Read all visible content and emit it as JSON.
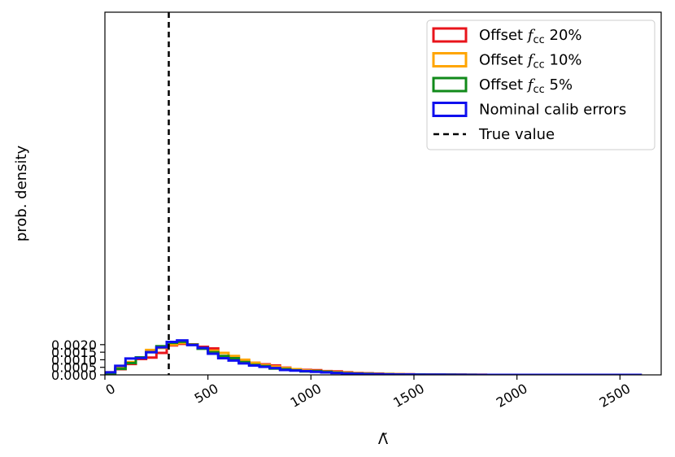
{
  "chart_data": {
    "type": "histogram",
    "title": "",
    "xlabel": "Λ̃",
    "ylabel": "prob. density",
    "xlim": [
      0,
      2700
    ],
    "ylim": [
      0,
      0.024
    ],
    "x_ticks": [
      0,
      500,
      1000,
      1500,
      2000,
      2500
    ],
    "x_tick_labels": [
      "0",
      "500",
      "1000",
      "1500",
      "2000",
      "2500"
    ],
    "y_ticks": [
      0,
      0.0005,
      0.001,
      0.0015,
      0.002
    ],
    "y_tick_labels": [
      "0.0000",
      "0.0005",
      "0.0010",
      "0.0015",
      "0.0020"
    ],
    "grid": false,
    "legend_position": "top-right",
    "true_value": 310,
    "true_value_label": "True value",
    "series": [
      {
        "name": "Offset f_cc 20%",
        "legend_main": "Offset ",
        "legend_sym": "f",
        "legend_sub": "cc",
        "legend_tail": " 20%",
        "color": "#e8141b",
        "bin_start": 0,
        "bin_width": 50,
        "values": [
          0.00017,
          0.00038,
          0.00072,
          0.00105,
          0.00114,
          0.00145,
          0.00195,
          0.00205,
          0.00202,
          0.00186,
          0.00175,
          0.00145,
          0.00121,
          0.00095,
          0.0008,
          0.0007,
          0.00062,
          0.00048,
          0.00038,
          0.00033,
          0.00031,
          0.00025,
          0.00023,
          0.00017,
          0.00012,
          0.0001,
          8e-05,
          6e-05,
          5e-05,
          4e-05,
          3e-05,
          2e-05,
          1e-05,
          1e-05,
          1e-05,
          5e-06,
          5e-06,
          3e-06,
          3e-06,
          2e-06,
          2e-06,
          2e-06,
          1e-06,
          1e-06,
          1e-06,
          1e-06,
          1e-06,
          1e-06,
          1e-06,
          1e-06,
          1e-06,
          1e-06
        ]
      },
      {
        "name": "Offset f_cc 10%",
        "legend_main": "Offset ",
        "legend_sym": "f",
        "legend_sub": "cc",
        "legend_tail": " 10%",
        "color": "#ffa500",
        "bin_start": 0,
        "bin_width": 50,
        "values": [
          0.00015,
          0.00047,
          0.00084,
          0.00113,
          0.00165,
          0.00178,
          0.002,
          0.00211,
          0.002,
          0.00175,
          0.0016,
          0.00145,
          0.00125,
          0.001,
          0.0008,
          0.00065,
          0.00055,
          0.00045,
          0.00038,
          0.0003,
          0.00026,
          0.00022,
          0.00018,
          0.00014,
          0.0001,
          8e-05,
          6e-05,
          5e-05,
          4e-05,
          3e-05,
          2e-05,
          2e-05,
          1e-05,
          1e-05,
          1e-05,
          5e-06,
          5e-06,
          3e-06,
          3e-06,
          2e-06,
          2e-06,
          2e-06,
          1e-06,
          1e-06,
          1e-06,
          1e-06,
          1e-06,
          1e-06,
          1e-06,
          1e-06,
          1e-06,
          1e-06
        ]
      },
      {
        "name": "Offset f_cc 5%",
        "legend_main": "Offset ",
        "legend_sym": "f",
        "legend_sub": "cc",
        "legend_tail": " 5%",
        "color": "#118a1a",
        "bin_start": 0,
        "bin_width": 50,
        "values": [
          0.0001,
          0.0004,
          0.00078,
          0.00116,
          0.0015,
          0.0019,
          0.00212,
          0.00219,
          0.002,
          0.00173,
          0.0015,
          0.00125,
          0.0011,
          0.00085,
          0.00066,
          0.00058,
          0.00042,
          0.00038,
          0.0003,
          0.00023,
          0.00025,
          0.0002,
          0.00015,
          0.00011,
          8e-05,
          7e-05,
          5e-05,
          4e-05,
          3e-05,
          2e-05,
          2e-05,
          1e-05,
          1e-05,
          1e-05,
          5e-06,
          5e-06,
          3e-06,
          3e-06,
          2e-06,
          2e-06,
          2e-06,
          1e-06,
          1e-06,
          1e-06,
          1e-06,
          1e-06,
          1e-06,
          1e-06,
          1e-06,
          1e-06,
          1e-06,
          1e-06
        ]
      },
      {
        "name": "Nominal calib errors",
        "legend_main": "Nominal calib errors",
        "legend_sym": "",
        "legend_sub": "",
        "legend_tail": "",
        "color": "#1010ee",
        "bin_start": 0,
        "bin_width": 50,
        "values": [
          0.00017,
          0.0006,
          0.00108,
          0.00112,
          0.0015,
          0.00182,
          0.00218,
          0.00228,
          0.00197,
          0.00178,
          0.0014,
          0.0011,
          0.00095,
          0.00076,
          0.00062,
          0.00053,
          0.00045,
          0.00032,
          0.00028,
          0.00025,
          0.0002,
          0.00016,
          0.00012,
          9e-05,
          7e-05,
          5e-05,
          4e-05,
          3e-05,
          2e-05,
          2e-05,
          1e-05,
          1e-05,
          1e-05,
          5e-06,
          5e-06,
          3e-06,
          3e-06,
          2e-06,
          2e-06,
          2e-06,
          1e-06,
          1e-06,
          1e-06,
          1e-06,
          1e-06,
          1e-06,
          1e-06,
          1e-06,
          1e-06,
          1e-06,
          1e-06,
          1e-06
        ]
      }
    ]
  }
}
